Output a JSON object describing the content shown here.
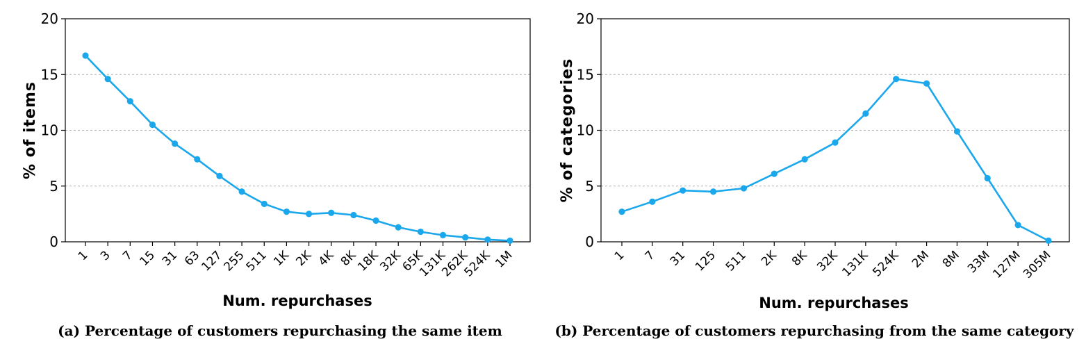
{
  "chart_data": [
    {
      "type": "line",
      "caption": "(a) Percentage of customers repurchasing the same item",
      "xlabel": "Num. repurchases",
      "ylabel": "% of items",
      "ylim": [
        0,
        20
      ],
      "yticks": [
        0,
        5,
        10,
        15,
        20
      ],
      "grid": "horizontal-dashed",
      "categories": [
        "1",
        "3",
        "7",
        "15",
        "31",
        "63",
        "127",
        "255",
        "511",
        "1K",
        "2K",
        "4K",
        "8K",
        "18K",
        "32K",
        "65K",
        "131K",
        "262K",
        "524K",
        "1M"
      ],
      "values": [
        16.7,
        14.6,
        12.6,
        10.5,
        8.8,
        7.4,
        5.9,
        4.5,
        3.4,
        2.7,
        2.5,
        2.6,
        2.4,
        1.9,
        1.3,
        0.9,
        0.6,
        0.4,
        0.2,
        0.1
      ],
      "color": "#1aa7ec"
    },
    {
      "type": "line",
      "caption": "(b) Percentage of customers repurchasing from the same category",
      "xlabel": "Num. repurchases",
      "ylabel": "% of categories",
      "ylim": [
        0,
        20
      ],
      "yticks": [
        0,
        5,
        10,
        15,
        20
      ],
      "grid": "horizontal-dashed",
      "categories": [
        "1",
        "7",
        "31",
        "125",
        "511",
        "2K",
        "8K",
        "32K",
        "131K",
        "524K",
        "2M",
        "8M",
        "33M",
        "127M",
        "305M"
      ],
      "values": [
        2.7,
        3.6,
        4.6,
        4.5,
        4.8,
        6.1,
        7.4,
        8.9,
        11.5,
        14.6,
        14.2,
        9.9,
        5.7,
        1.5,
        0.1
      ],
      "color": "#1aa7ec"
    }
  ]
}
